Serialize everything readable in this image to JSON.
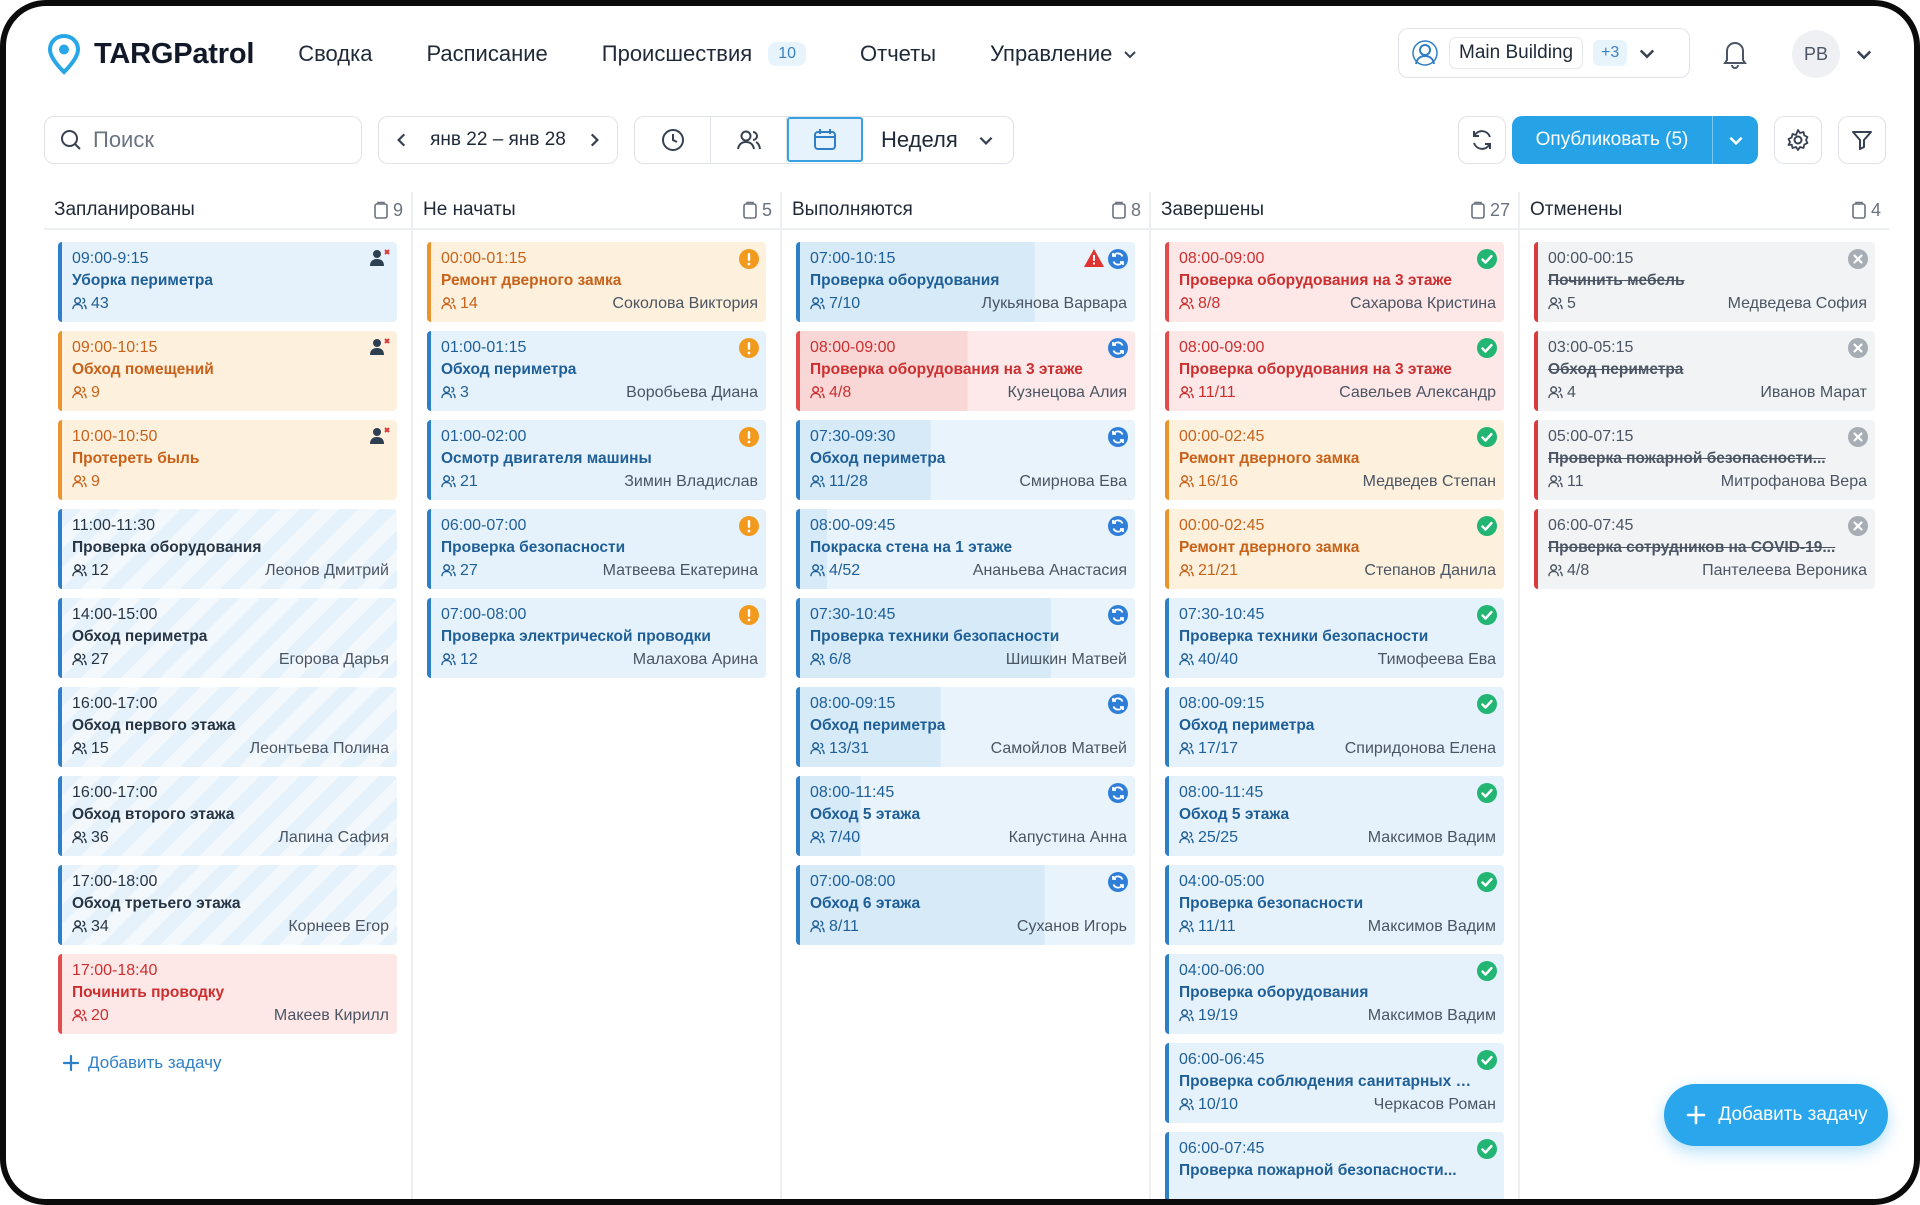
{
  "app": {
    "name": "TARGPatrol"
  },
  "nav": [
    {
      "label": "Сводка"
    },
    {
      "label": "Расписание"
    },
    {
      "label": "Происшествия",
      "badge": "10"
    },
    {
      "label": "Отчеты"
    },
    {
      "label": "Управление"
    }
  ],
  "building": {
    "name": "Main Building",
    "extra": "+3"
  },
  "user": {
    "initials": "PB"
  },
  "toolbar": {
    "search_placeholder": "Поиск",
    "date_range": "янв 22 – янв 28",
    "view_select": "Неделя",
    "publish_label": "Опубликовать (5)"
  },
  "colors": {
    "accent": "#26a3e6",
    "blue": "#2f7fc7",
    "orange": "#e9952e",
    "red": "#e24c4c",
    "green": "#22b573"
  },
  "columns": [
    {
      "title": "Запланированы",
      "count": "9",
      "add_label": "Добавить задачу",
      "cards": [
        {
          "time": "09:00-9:15",
          "title": "Уборка периметра",
          "count": "43",
          "person": "",
          "style": "blue",
          "icon": "user-x-icon"
        },
        {
          "time": "09:00-10:15",
          "title": "Обход помещений",
          "count": "9",
          "person": "",
          "style": "orange",
          "icon": "user-x-icon"
        },
        {
          "time": "10:00-10:50",
          "title": "Протереть быль",
          "count": "9",
          "person": "",
          "style": "orange",
          "icon": "user-x-icon"
        },
        {
          "time": "11:00-11:30",
          "title": "Проверка оборудования",
          "count": "12",
          "person": "Леонов Дмитрий",
          "style": "stripe",
          "icon": ""
        },
        {
          "time": "14:00-15:00",
          "title": "Обход периметра",
          "count": "27",
          "person": "Егорова Дарья",
          "style": "stripe",
          "icon": ""
        },
        {
          "time": "16:00-17:00",
          "title": "Обход первого этажа",
          "count": "15",
          "person": "Леонтьева Полина",
          "style": "stripe",
          "icon": ""
        },
        {
          "time": "16:00-17:00",
          "title": "Обход второго этажа",
          "count": "36",
          "person": "Лапина Сафия",
          "style": "stripe",
          "icon": ""
        },
        {
          "time": "17:00-18:00",
          "title": "Обход третьего этажа",
          "count": "34",
          "person": "Корнеев Егор",
          "style": "stripe",
          "icon": ""
        },
        {
          "time": "17:00-18:40",
          "title": "Починить проводку",
          "count": "20",
          "person": "Макеев Кирилл",
          "style": "red",
          "icon": ""
        }
      ]
    },
    {
      "title": "Не начаты",
      "count": "5",
      "cards": [
        {
          "time": "00:00-01:15",
          "title": "Ремонт дверного замка",
          "count": "14",
          "person": "Соколова Виктория",
          "style": "orange",
          "icon": "alert-icon"
        },
        {
          "time": "01:00-01:15",
          "title": "Обход периметра",
          "count": "3",
          "person": "Воробьева Диана",
          "style": "blue",
          "icon": "alert-icon"
        },
        {
          "time": "01:00-02:00",
          "title": "Осмотр двигателя машины",
          "count": "21",
          "person": "Зимин Владислав",
          "style": "blue",
          "icon": "alert-icon"
        },
        {
          "time": "06:00-07:00",
          "title": "Проверка безопасности",
          "count": "27",
          "person": "Матвеева Екатерина",
          "style": "blue",
          "icon": "alert-icon"
        },
        {
          "time": "07:00-08:00",
          "title": "Проверка электрической проводки",
          "count": "12",
          "person": "Малахова Арина",
          "style": "blue",
          "icon": "alert-icon"
        }
      ]
    },
    {
      "title": "Выполняются",
      "count": "8",
      "cards": [
        {
          "time": "07:00-10:15",
          "title": "Проверка оборудования",
          "count": "7/10",
          "person": "Лукьянова Варвара",
          "style": "prog",
          "progress": 0.7,
          "icon": "in-progress-icon",
          "warn": true
        },
        {
          "time": "08:00-09:00",
          "title": "Проверка оборудования на 3 этаже",
          "count": "4/8",
          "person": "Кузнецова Алия",
          "style": "redprog",
          "progress": 0.5,
          "icon": "in-progress-icon"
        },
        {
          "time": "07:30-09:30",
          "title": "Обход периметра",
          "count": "11/28",
          "person": "Смирнова Ева",
          "style": "prog",
          "progress": 0.39,
          "icon": "in-progress-icon"
        },
        {
          "time": "08:00-09:45",
          "title": "Покраска стена на 1 этаже",
          "count": "4/52",
          "person": "Ананьева Анастасия",
          "style": "prog",
          "progress": 0.08,
          "icon": "in-progress-icon"
        },
        {
          "time": "07:30-10:45",
          "title": "Проверка техники безопасности",
          "count": "6/8",
          "person": "Шишкин Матвей",
          "style": "prog",
          "progress": 0.75,
          "icon": "in-progress-icon"
        },
        {
          "time": "08:00-09:15",
          "title": "Обход периметра",
          "count": "13/31",
          "person": "Самойлов Матвей",
          "style": "prog",
          "progress": 0.42,
          "icon": "in-progress-icon"
        },
        {
          "time": "08:00-11:45",
          "title": "Обход 5 этажа",
          "count": "7/40",
          "person": "Капустина Анна",
          "style": "prog",
          "progress": 0.18,
          "icon": "in-progress-icon"
        },
        {
          "time": "07:00-08:00",
          "title": "Обход 6 этажа",
          "count": "8/11",
          "person": "Суханов Игорь",
          "style": "prog",
          "progress": 0.73,
          "icon": "in-progress-icon"
        }
      ]
    },
    {
      "title": "Завершены",
      "count": "27",
      "cards": [
        {
          "time": "08:00-09:00",
          "title": "Проверка оборудования на 3 этаже",
          "count": "8/8",
          "person": "Сахарова Кристина",
          "style": "red",
          "icon": "check-icon"
        },
        {
          "time": "08:00-09:00",
          "title": "Проверка оборудования на 3 этаже",
          "count": "11/11",
          "person": "Савельев Александр",
          "style": "red",
          "icon": "check-icon"
        },
        {
          "time": "00:00-02:45",
          "title": "Ремонт дверного замка",
          "count": "16/16",
          "person": "Медведев Степан",
          "style": "orange",
          "icon": "check-icon"
        },
        {
          "time": "00:00-02:45",
          "title": "Ремонт дверного замка",
          "count": "21/21",
          "person": "Степанов Данила",
          "style": "orange",
          "icon": "check-icon"
        },
        {
          "time": "07:30-10:45",
          "title": "Проверка техники безопасности",
          "count": "40/40",
          "person": "Тимофеева Ева",
          "style": "blue",
          "icon": "check-icon"
        },
        {
          "time": "08:00-09:15",
          "title": "Обход периметра",
          "count": "17/17",
          "person": "Спиридонова Елена",
          "style": "blue",
          "icon": "check-icon"
        },
        {
          "time": "08:00-11:45",
          "title": "Обход 5 этажа",
          "count": "25/25",
          "person": "Максимов Вадим",
          "style": "blue",
          "icon": "check-icon"
        },
        {
          "time": "04:00-05:00",
          "title": "Проверка безопасности",
          "count": "11/11",
          "person": "Максимов Вадим",
          "style": "blue",
          "icon": "check-icon"
        },
        {
          "time": "04:00-06:00",
          "title": "Проверка оборудования",
          "count": "19/19",
          "person": "Максимов Вадим",
          "style": "blue",
          "icon": "check-icon"
        },
        {
          "time": "06:00-06:45",
          "title": "Проверка соблюдения санитарных но...",
          "count": "10/10",
          "person": "Черкасов Роман",
          "style": "blue",
          "icon": "check-icon"
        },
        {
          "time": "06:00-07:45",
          "title": "Проверка пожарной безопасности...",
          "count": "",
          "person": "",
          "style": "blue",
          "icon": "check-icon"
        }
      ]
    },
    {
      "title": "Отменены",
      "count": "4",
      "cards": [
        {
          "time": "00:00-00:15",
          "title": "Починить мебель",
          "count": "5",
          "person": "Медведева София",
          "style": "gray",
          "icon": "cancel-icon"
        },
        {
          "time": "03:00-05:15",
          "title": "Обход периметра",
          "count": "4",
          "person": "Иванов Марат",
          "style": "gray",
          "icon": "cancel-icon"
        },
        {
          "time": "05:00-07:15",
          "title": "Проверка пожарной безопасности...",
          "count": "11",
          "person": "Митрофанова Вера",
          "style": "gray",
          "icon": "cancel-icon"
        },
        {
          "time": "06:00-07:45",
          "title": "Проверка сотрудников на COVID-19...",
          "count": "4/8",
          "person": "Пантелеева Вероника",
          "style": "gray",
          "icon": "cancel-icon"
        }
      ]
    }
  ],
  "fab": {
    "label": "Добавить задачу"
  }
}
